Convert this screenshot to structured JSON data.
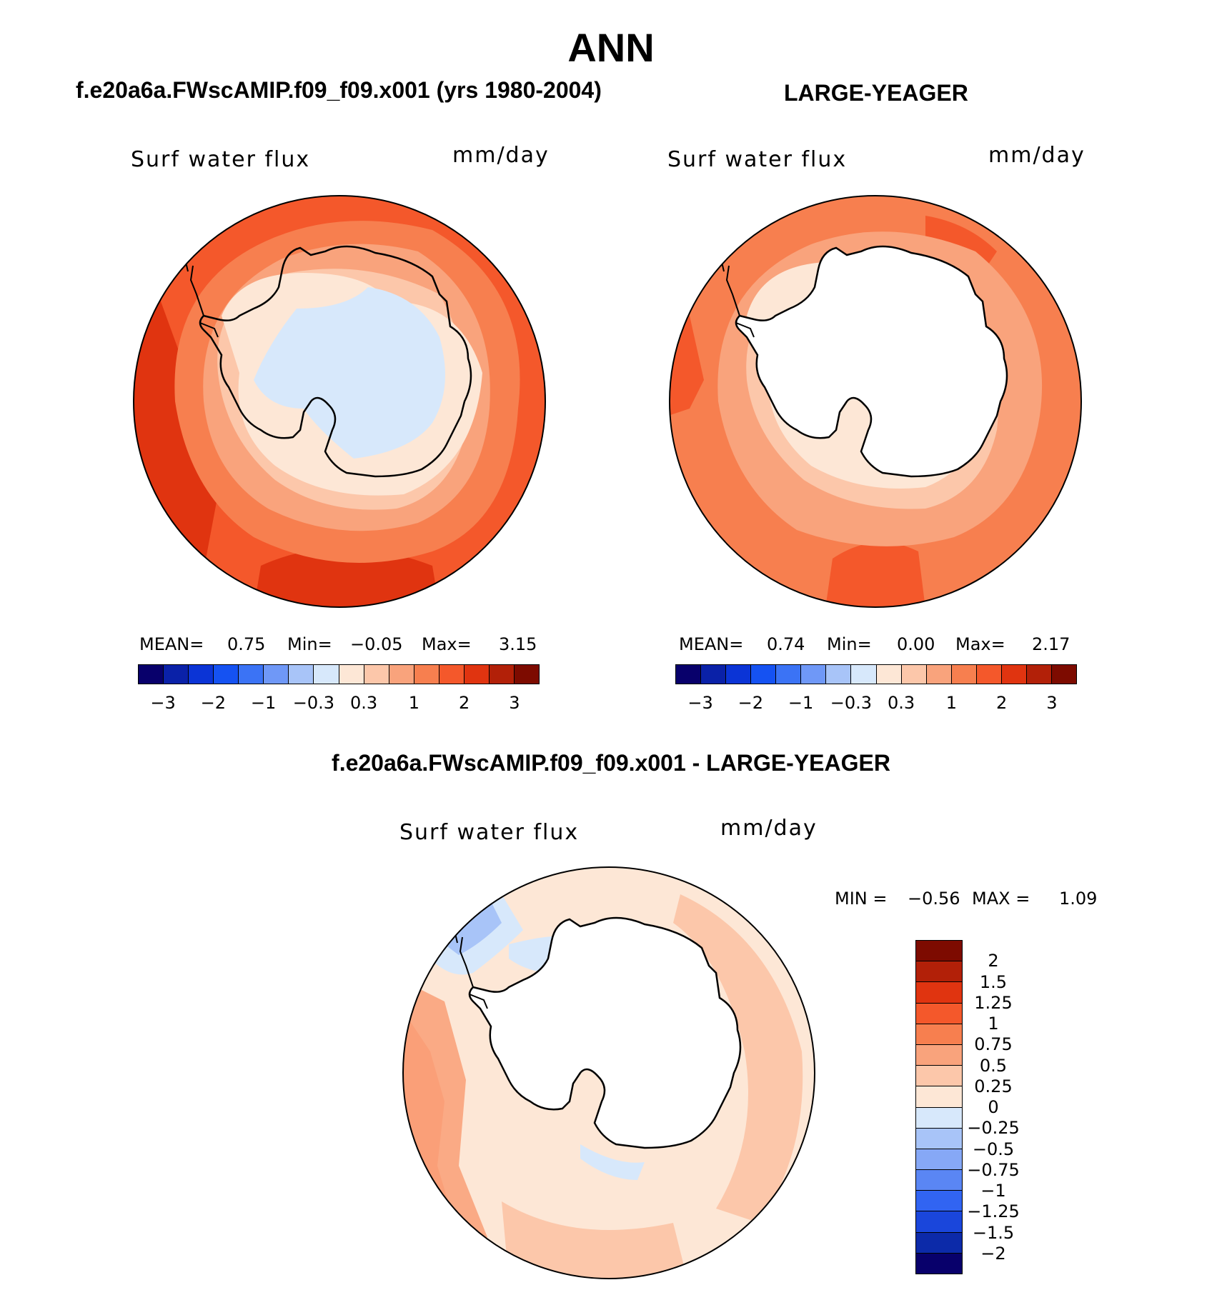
{
  "title": "ANN",
  "panel_left": {
    "title": "f.e20a6a.FWscAMIP.f09_f09.x001 (yrs 1980-2004)",
    "variable": "Surf water flux",
    "units": "mm/day",
    "mean_label": "MEAN=",
    "mean": "0.75",
    "min_label": "Min=",
    "min": "−0.05",
    "max_label": "Max=",
    "max": "3.15"
  },
  "panel_right": {
    "title": "LARGE-YEAGER",
    "variable": "Surf water flux",
    "units": "mm/day",
    "mean_label": "MEAN=",
    "mean": "0.74",
    "min_label": "Min=",
    "min": "0.00",
    "max_label": "Max=",
    "max": "2.17"
  },
  "panel_diff": {
    "title": "f.e20a6a.FWscAMIP.f09_f09.x001 - LARGE-YEAGER",
    "variable": "Surf water flux",
    "units": "mm/day",
    "min_label": "MIN =",
    "min": "−0.56",
    "max_label": "MAX =",
    "max": "1.09"
  },
  "colorbar_top": {
    "colors": [
      "#08006b",
      "#0a21a8",
      "#0b34d6",
      "#1552f2",
      "#3b73f5",
      "#6f98f7",
      "#a8c4f8",
      "#d7e8fb",
      "#fde7d6",
      "#fcc7aa",
      "#f9a37c",
      "#f77f4f",
      "#f4582b",
      "#e03410",
      "#b22008",
      "#7d0b00"
    ],
    "ticks": [
      "−3",
      "−2",
      "−1",
      "−0.3",
      "0.3",
      "1",
      "2",
      "3"
    ]
  },
  "colorbar_diff": {
    "colors": [
      "#7d0b00",
      "#b22008",
      "#e03410",
      "#f4582b",
      "#f77f4f",
      "#f9a37c",
      "#fcc7aa",
      "#fde7d6",
      "#d7e8fb",
      "#a8c4f8",
      "#86a8f6",
      "#5a86f4",
      "#3164f2",
      "#1a46db",
      "#0c2aa9",
      "#08006b"
    ],
    "ticks": [
      "2",
      "1.5",
      "1.25",
      "1",
      "0.75",
      "0.5",
      "0.25",
      "0",
      "−0.25",
      "−0.5",
      "−0.75",
      "−1",
      "−1.25",
      "−1.5",
      "−2"
    ]
  },
  "map_colors": {
    "c3": "#e03410",
    "c2": "#f4582b",
    "c1": "#f77f4f",
    "c05": "#f9a37c",
    "c03": "#fcc7aa",
    "c0": "#fde7d6",
    "neg": "#d7e8fb",
    "neg2": "#a8c4f8",
    "land": "#ffffff"
  }
}
